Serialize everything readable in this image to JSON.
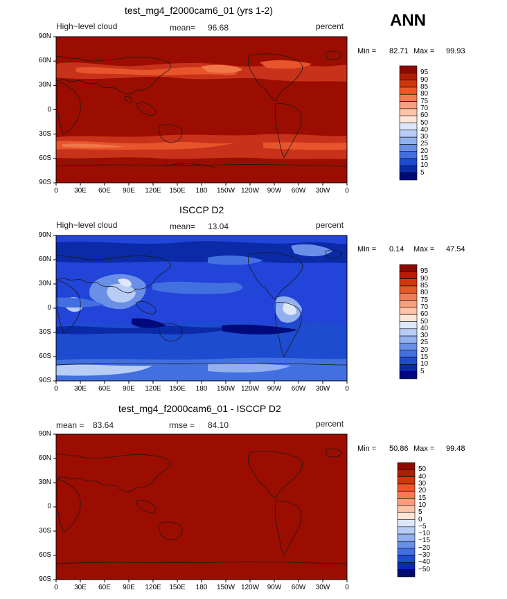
{
  "season": "ANN",
  "lat_ticks": [
    "90N",
    "60N",
    "30N",
    "0",
    "30S",
    "60S",
    "90S"
  ],
  "lon_ticks": [
    "0",
    "30E",
    "60E",
    "90E",
    "120E",
    "150E",
    "180",
    "150W",
    "120W",
    "90W",
    "60W",
    "30W",
    "0"
  ],
  "panels": [
    {
      "title": "test_mg4_f2000cam6_01 (yrs 1-2)",
      "left_label": "High−level cloud",
      "mean_label": "mean=",
      "mean_value": "96.68",
      "units": "percent",
      "min_label": "Min =",
      "min_value": "82.71",
      "max_label": "Max =",
      "max_value": "99.93",
      "colorbar_levels": [
        "95",
        "90",
        "85",
        "80",
        "75",
        "70",
        "60",
        "50",
        "40",
        "30",
        "25",
        "20",
        "15",
        "10",
        "5"
      ]
    },
    {
      "title": "ISCCP D2",
      "left_label": "High−level cloud",
      "mean_label": "mean=",
      "mean_value": "13.04",
      "units": "percent",
      "min_label": "Min =",
      "min_value": "0.14",
      "max_label": "Max =",
      "max_value": "47.54",
      "colorbar_levels": [
        "95",
        "90",
        "85",
        "80",
        "75",
        "70",
        "60",
        "50",
        "40",
        "30",
        "25",
        "20",
        "15",
        "10",
        "5"
      ]
    },
    {
      "title": "test_mg4_f2000cam6_01 - ISCCP D2",
      "mean_label": "mean =",
      "mean_value": "83.64",
      "rmse_label": "rmse =",
      "rmse_value": "84.10",
      "units": "percent",
      "min_label": "Min =",
      "min_value": "50.86",
      "max_label": "Max =",
      "max_value": "99.48",
      "colorbar_levels": [
        "50",
        "40",
        "30",
        "20",
        "15",
        "10",
        "5",
        "0",
        "−5",
        "−10",
        "−15",
        "−20",
        "−30",
        "−40",
        "−50"
      ]
    }
  ],
  "colors": {
    "dark_red": "#9b0d00",
    "mid_red": "#c8321a",
    "orange_red": "#e8542b",
    "orange": "#f07848",
    "deep_blue": "#0a1ea8",
    "mid_blue": "#2244d8",
    "light_blue": "#7fa0f0",
    "pale_blue": "#c8d8f8",
    "land": "#1a1a1a"
  },
  "colorbar_palette": [
    "#8c0a00",
    "#b01e05",
    "#d2370c",
    "#e65a28",
    "#f27d52",
    "#f7a07e",
    "#fbc3a8",
    "#fde6d8",
    "#dce8fa",
    "#b8cdf5",
    "#92b0ee",
    "#6a8fe6",
    "#4270e0",
    "#1e4cd0",
    "#0a2aa8",
    "#000a7a"
  ]
}
